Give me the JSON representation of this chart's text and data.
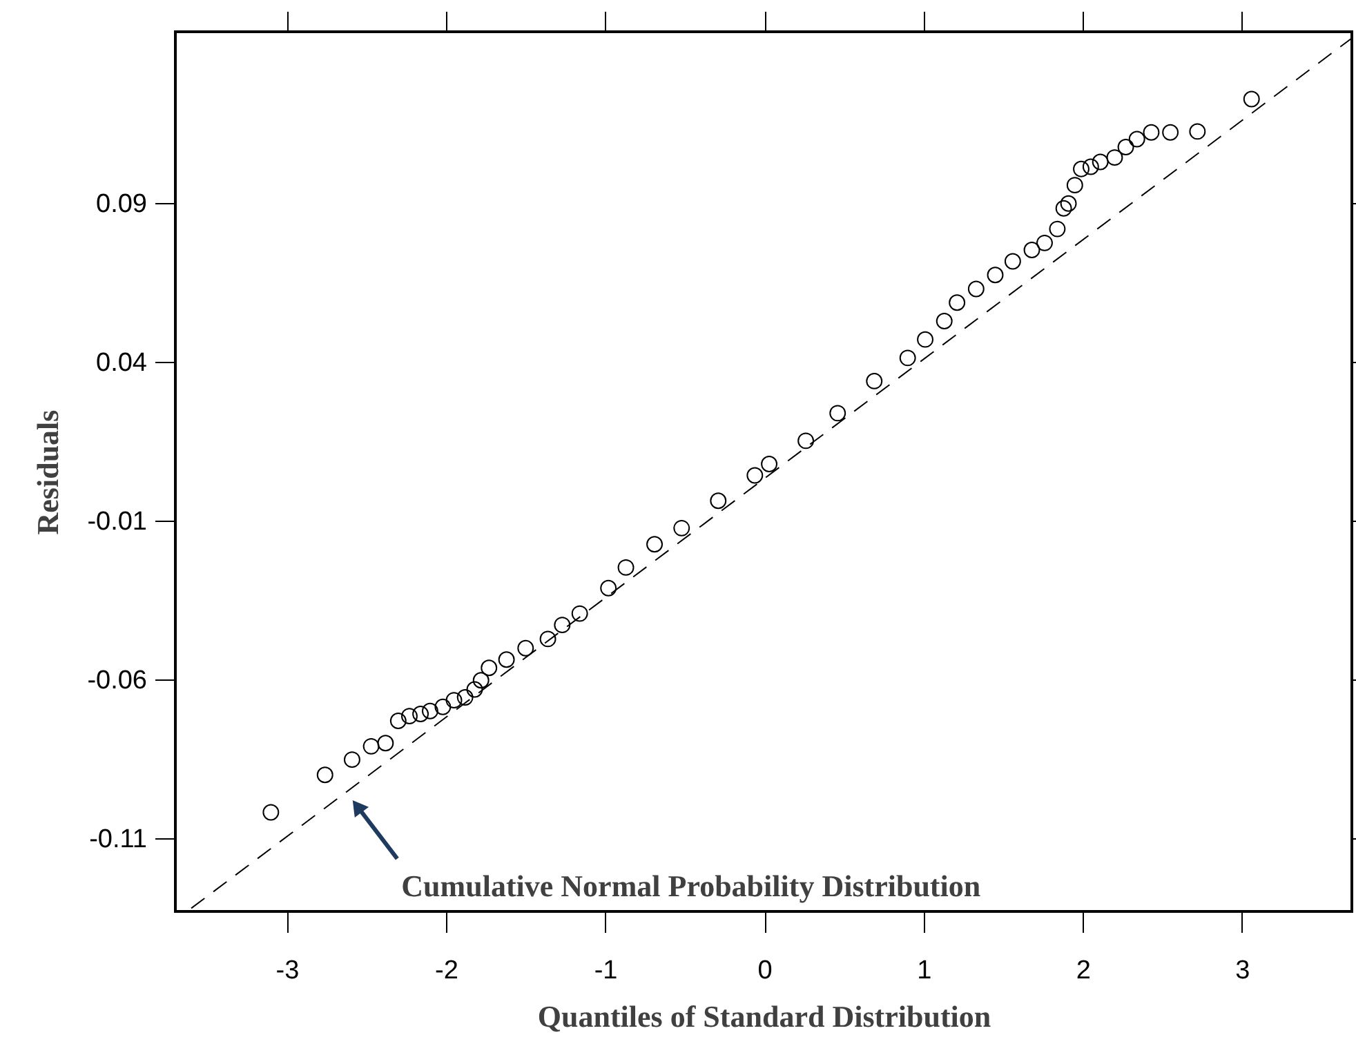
{
  "chart_data": {
    "type": "scatter",
    "xlabel": "Quantiles of Standard Distribution",
    "ylabel": "Residuals",
    "xlim": [
      -3.7,
      3.69
    ],
    "ylim": [
      -0.133,
      0.144
    ],
    "xticks": [
      -3,
      -2,
      -1,
      0,
      1,
      2,
      3
    ],
    "yticks": [
      -0.11,
      -0.06,
      -0.01,
      0.04,
      0.09
    ],
    "grid": false,
    "marker": "circle",
    "series": [
      {
        "color": "#000000",
        "x": [
          -3.1,
          -2.76,
          -2.59,
          -2.47,
          -2.38,
          -2.3,
          -2.23,
          -2.16,
          -2.1,
          -2.02,
          -1.95,
          -1.88,
          -1.82,
          -1.78,
          -1.73,
          -1.62,
          -1.5,
          -1.36,
          -1.27,
          -1.16,
          -0.98,
          -0.87,
          -0.69,
          -0.52,
          -0.29,
          -0.06,
          0.03,
          0.26,
          0.46,
          0.69,
          0.9,
          1.01,
          1.13,
          1.21,
          1.33,
          1.45,
          1.56,
          1.68,
          1.76,
          1.84,
          1.88,
          1.91,
          1.95,
          1.99,
          2.05,
          2.11,
          2.2,
          2.27,
          2.34,
          2.43,
          2.55,
          2.72,
          3.06
        ],
        "values": [
          -0.1018,
          -0.09,
          -0.0852,
          -0.081,
          -0.08,
          -0.073,
          -0.0715,
          -0.0708,
          -0.0699,
          -0.0686,
          -0.0665,
          -0.0656,
          -0.0631,
          -0.0602,
          -0.0563,
          -0.0537,
          -0.0501,
          -0.0472,
          -0.0428,
          -0.0392,
          -0.0312,
          -0.0247,
          -0.0174,
          -0.0123,
          -0.0037,
          0.0043,
          0.0079,
          0.0152,
          0.0239,
          0.034,
          0.0413,
          0.0471,
          0.0529,
          0.0587,
          0.063,
          0.0674,
          0.0717,
          0.0753,
          0.0775,
          0.0819,
          0.0884,
          0.0899,
          0.0957,
          0.1008,
          0.1015,
          0.103,
          0.1044,
          0.1077,
          0.1102,
          0.1123,
          0.1123,
          0.1126,
          0.1228
        ]
      },
      {
        "type": "line",
        "color": "#000000",
        "line_style": "dashed",
        "marker": "none",
        "x": [
          -3.6,
          3.69
        ],
        "values": [
          -0.132,
          0.142
        ]
      }
    ],
    "annotations": [
      {
        "text": "Cumulative Normal Probability Distribution",
        "x": -2.61,
        "y": -0.0964
      }
    ]
  }
}
